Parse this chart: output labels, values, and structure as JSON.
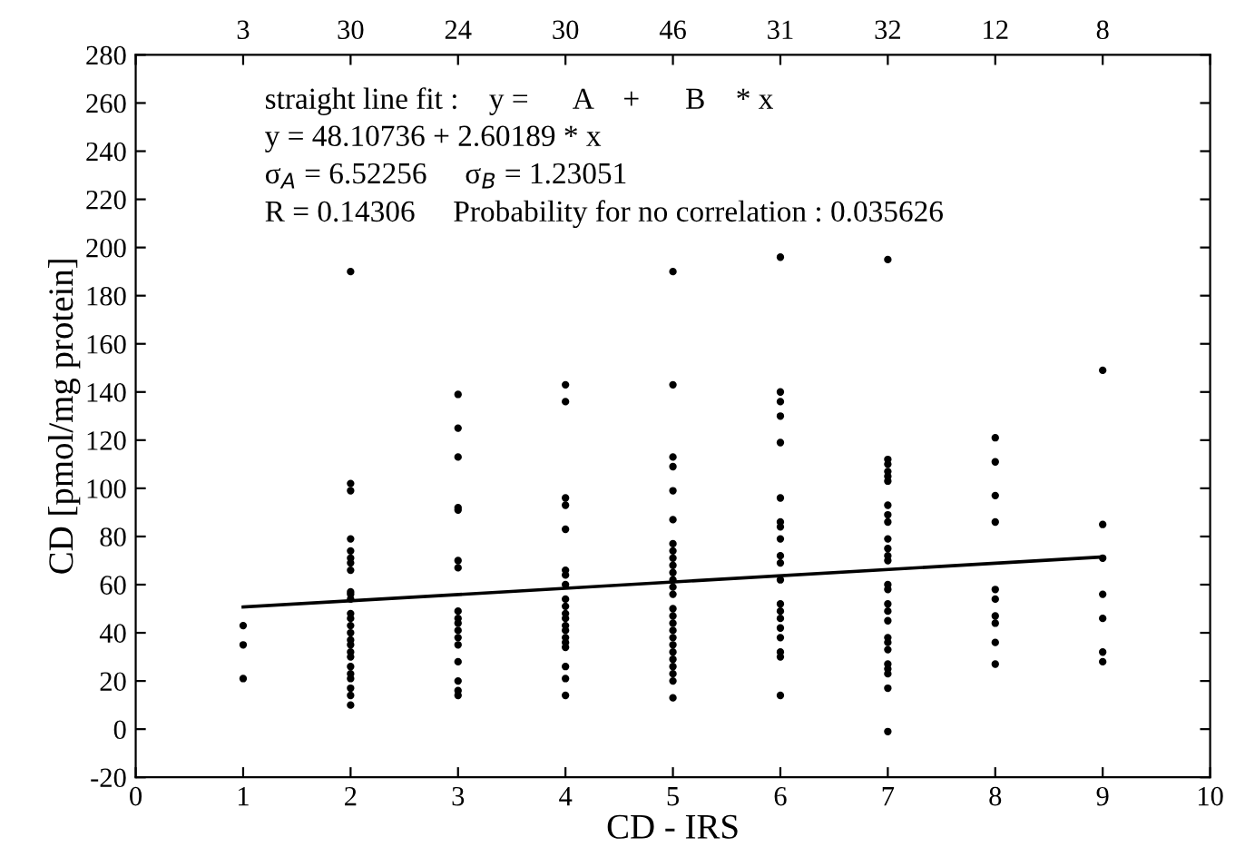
{
  "chart_data": {
    "type": "scatter",
    "xlabel": "CD - IRS",
    "ylabel": "CD [pmol/mg protein]",
    "xlim": [
      0,
      10
    ],
    "xticks": [
      0,
      1,
      2,
      3,
      4,
      5,
      6,
      7,
      8,
      9,
      10
    ],
    "ylim": [
      -20,
      280
    ],
    "yticks": [
      -20,
      0,
      20,
      40,
      60,
      80,
      100,
      120,
      140,
      160,
      180,
      200,
      220,
      240,
      260,
      280
    ],
    "grid": false,
    "legend": false,
    "marker": "circle",
    "annotations": [
      "straight line fit :    y =      A    +      B    * x",
      "y = 48.10736 + 2.60189 * x",
      "σ$_{A}$ = 6.52256     σ$_{B}$ = 1.23051",
      "R = 0.14306     Probability for no correlation : 0.035626",
      {
        "text": "3",
        "x": 1
      },
      {
        "text": "30",
        "x": 2
      },
      {
        "text": "24",
        "x": 3
      },
      {
        "text": "30",
        "x": 4
      },
      {
        "text": "46",
        "x": 5
      },
      {
        "text": "31",
        "x": 6
      },
      {
        "text": "32",
        "x": 7
      },
      {
        "text": "12",
        "x": 8
      },
      {
        "text": "8",
        "x": 9
      }
    ],
    "series": [
      {
        "color": "#000000",
        "x": [
          1,
          1,
          1,
          2,
          2,
          2,
          2,
          2,
          2,
          2,
          2,
          2,
          2,
          2,
          2,
          2,
          2,
          2,
          2,
          2,
          2,
          2,
          2,
          2,
          2,
          2,
          2,
          2,
          3,
          3,
          3,
          3,
          3,
          3,
          3,
          3,
          3,
          3,
          3,
          3,
          3,
          3,
          3,
          3,
          3,
          4,
          4,
          4,
          4,
          4,
          4,
          4,
          4,
          4,
          4,
          4,
          4,
          4,
          4,
          4,
          4,
          4,
          4,
          4,
          4,
          5,
          5,
          5,
          5,
          5,
          5,
          5,
          5,
          5,
          5,
          5,
          5,
          5,
          5,
          5,
          5,
          5,
          5,
          5,
          5,
          5,
          5,
          5,
          5,
          5,
          5,
          6,
          6,
          6,
          6,
          6,
          6,
          6,
          6,
          6,
          6,
          6,
          6,
          6,
          6,
          6,
          6,
          6,
          6,
          6,
          6,
          7,
          7,
          7,
          7,
          7,
          7,
          7,
          7,
          7,
          7,
          7,
          7,
          7,
          7,
          7,
          7,
          7,
          7,
          7,
          7,
          7,
          7,
          7,
          7,
          7,
          7,
          8,
          8,
          8,
          8,
          8,
          8,
          8,
          8,
          8,
          8,
          9,
          9,
          9,
          9,
          9,
          9,
          9
        ],
        "values": [
          43,
          35,
          21,
          190,
          102,
          99,
          79,
          74,
          71,
          69,
          66,
          57,
          56,
          54,
          48,
          46,
          43,
          40,
          37,
          35,
          32,
          30,
          26,
          23,
          21,
          17,
          14,
          10,
          139,
          125,
          113,
          92,
          91,
          70,
          67,
          49,
          46,
          44,
          41,
          38,
          35,
          28,
          20,
          16,
          14,
          143,
          136,
          96,
          93,
          83,
          66,
          64,
          60,
          54,
          51,
          48,
          46,
          43,
          41,
          38,
          36,
          34,
          26,
          21,
          14,
          190,
          143,
          113,
          109,
          99,
          87,
          77,
          74,
          71,
          68,
          65,
          62,
          59,
          56,
          50,
          47,
          44,
          41,
          38,
          35,
          32,
          29,
          26,
          23,
          20,
          13,
          196,
          140,
          136,
          130,
          119,
          96,
          86,
          84,
          79,
          72,
          69,
          62,
          52,
          49,
          46,
          42,
          38,
          32,
          30,
          14,
          195,
          112,
          110,
          107,
          105,
          103,
          93,
          89,
          86,
          79,
          75,
          72,
          70,
          60,
          58,
          52,
          49,
          45,
          38,
          36,
          33,
          27,
          25,
          23,
          17,
          -1,
          121,
          111,
          97,
          86,
          58,
          54,
          47,
          44,
          36,
          27,
          149,
          85,
          71,
          56,
          46,
          32,
          28
        ]
      },
      {
        "type": "line",
        "color": "#000000",
        "marker": "none",
        "line_style": "solid",
        "x": [
          1,
          9
        ],
        "values": [
          50.7,
          71.5
        ]
      }
    ]
  }
}
